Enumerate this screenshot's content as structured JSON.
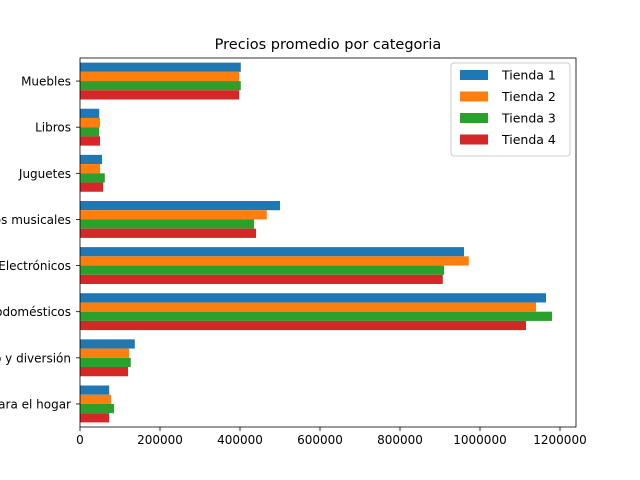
{
  "chart_data": {
    "type": "bar",
    "orientation": "horizontal",
    "title": "Precios promedio por categoria",
    "xlabel": "",
    "ylabel": "",
    "xlim": [
      0,
      1240000
    ],
    "xticks": [
      0,
      200000,
      400000,
      600000,
      800000,
      1000000,
      1200000
    ],
    "xtick_labels": [
      "0",
      "200000",
      "400000",
      "600000",
      "800000",
      "1000000",
      "1200000"
    ],
    "categories": [
      "Muebles",
      "Libros",
      "Juguetes",
      "Instrumentos musicales",
      "Electrónicos",
      "Electrodomésticos",
      "Entretenimiento y diversión",
      "Artículos para el hogar"
    ],
    "series": [
      {
        "name": "Tienda 1",
        "color": "#1f77b4",
        "values": [
          402000,
          48000,
          55000,
          500000,
          960000,
          1165000,
          137000,
          73000
        ]
      },
      {
        "name": "Tienda 2",
        "color": "#ff7f0e",
        "values": [
          398000,
          50000,
          50000,
          467000,
          972000,
          1140000,
          123000,
          78000
        ]
      },
      {
        "name": "Tienda 3",
        "color": "#2ca02c",
        "values": [
          402000,
          48000,
          62000,
          435000,
          910000,
          1180000,
          127000,
          85000
        ]
      },
      {
        "name": "Tienda 4",
        "color": "#d62728",
        "values": [
          398000,
          50000,
          58000,
          440000,
          907000,
          1115000,
          120000,
          73000
        ]
      }
    ],
    "legend_position": "top-right",
    "grid": false
  }
}
